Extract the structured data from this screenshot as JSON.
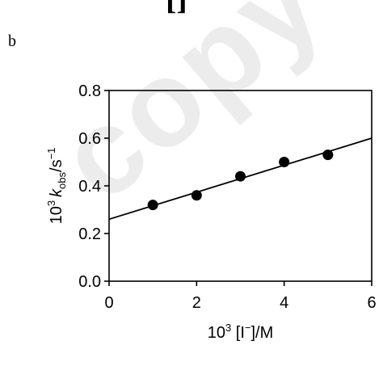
{
  "header": {
    "fragment": "[]",
    "panel_label": "b"
  },
  "watermark": {
    "text": "copy",
    "color": "#ececec"
  },
  "chart_data": {
    "type": "scatter",
    "xlabel": {
      "prefix": "10",
      "sup": "3",
      "text": " [I",
      "sup2": "−",
      "suffix": "]/M"
    },
    "ylabel": {
      "prefix": "10",
      "sup": "3",
      "k": "k",
      "sub": "obs",
      "suffix": "/s",
      "sup2": "−1"
    },
    "xlim": [
      0,
      6
    ],
    "ylim": [
      0,
      0.8
    ],
    "xticks": [
      0,
      2,
      4,
      6
    ],
    "yticks": [
      0.0,
      0.2,
      0.4,
      0.6,
      0.8
    ],
    "ytick_labels": [
      "0.0",
      "0.2",
      "0.4",
      "0.6",
      "0.8"
    ],
    "grid": false,
    "series": [
      {
        "x": [
          1,
          2,
          3,
          4,
          5
        ],
        "y": [
          0.32,
          0.36,
          0.44,
          0.5,
          0.53
        ]
      }
    ],
    "fit_line": {
      "x": [
        0,
        6
      ],
      "y": [
        0.26,
        0.6
      ]
    },
    "colors": {
      "marker": "#000000",
      "line": "#000000"
    }
  }
}
